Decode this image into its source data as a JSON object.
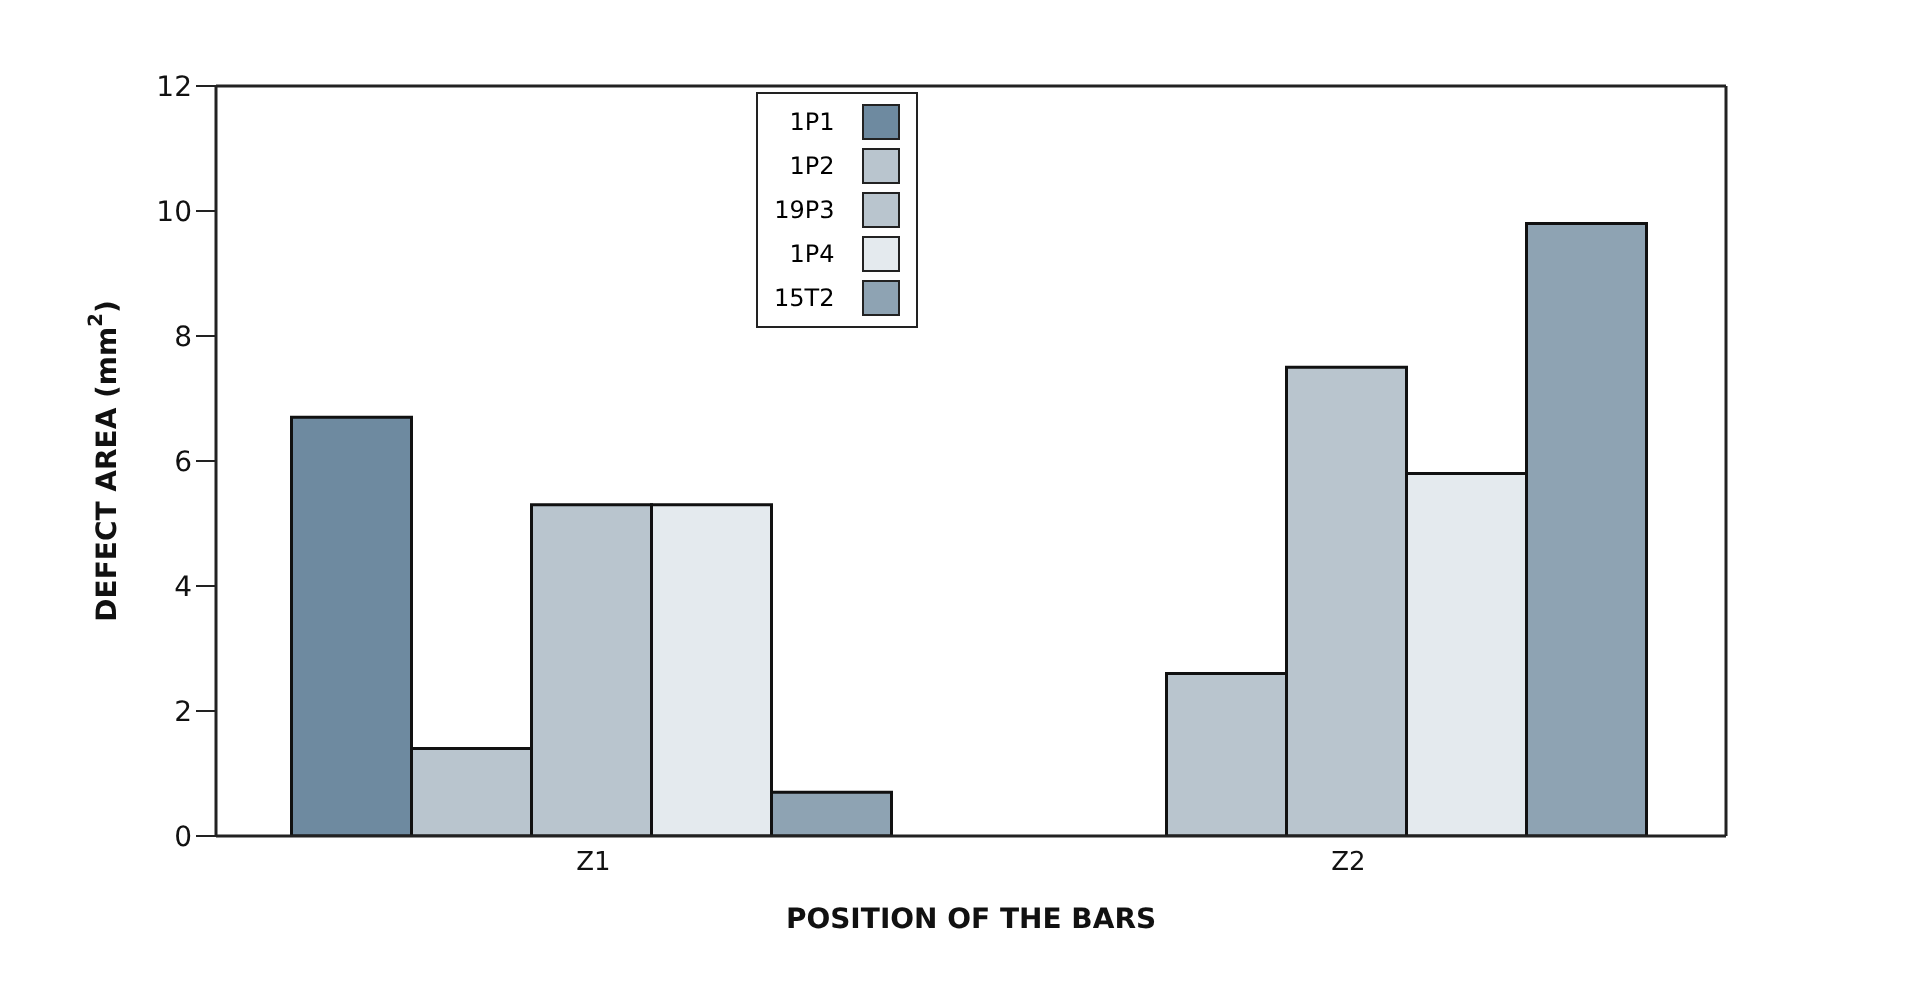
{
  "chart_data": {
    "type": "bar",
    "xlabel": "POSITION OF THE BARS",
    "ylabel": "DEFECT AREA (mm$^{2}$)",
    "categories": [
      "Z1",
      "Z2"
    ],
    "series": [
      {
        "name": "1P1",
        "color": "#6e8aa0",
        "values": [
          6.7,
          null
        ]
      },
      {
        "name": "1P2",
        "color": "#b9c5ce",
        "values": [
          1.4,
          2.6
        ]
      },
      {
        "name": "19P3",
        "color": "#b9c5ce",
        "values": [
          5.3,
          7.5
        ]
      },
      {
        "name": "1P4",
        "color": "#e4eaee",
        "values": [
          5.3,
          5.8
        ]
      },
      {
        "name": "15T2",
        "color": "#8ea3b3",
        "values": [
          0.7,
          9.8
        ]
      }
    ],
    "ylim": [
      0,
      12
    ],
    "yticks": [
      0,
      2,
      4,
      6,
      8,
      10,
      12
    ],
    "legend": "top"
  }
}
